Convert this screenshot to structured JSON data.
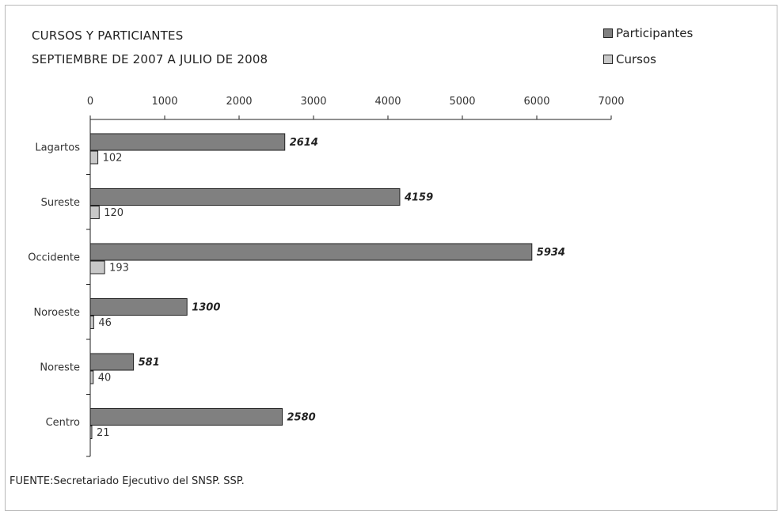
{
  "chart_data": {
    "type": "bar",
    "orientation": "horizontal",
    "title": "CURSOS Y PARTICIANTES",
    "subtitle": "SEPTIEMBRE DE 2007 A JULIO DE 2008",
    "categories": [
      "Lagartos",
      "Sureste",
      "Occidente",
      "Noroeste",
      "Noreste",
      "Centro"
    ],
    "series": [
      {
        "name": "Participantes",
        "values": [
          2614,
          4159,
          5934,
          1300,
          581,
          2580
        ],
        "color": "#808080",
        "label_style": "bold-italic"
      },
      {
        "name": "Cursos",
        "values": [
          102,
          120,
          193,
          46,
          40,
          21
        ],
        "color": "#c8c8c8",
        "label_style": "normal"
      }
    ],
    "xlim": [
      0,
      7000
    ],
    "xticks": [
      0,
      1000,
      2000,
      3000,
      4000,
      5000,
      6000,
      7000
    ],
    "axis_position": "top",
    "legend_position": "top-right",
    "grid": false,
    "source": "FUENTE:Secretariado Ejecutivo del SNSP. SSP."
  }
}
